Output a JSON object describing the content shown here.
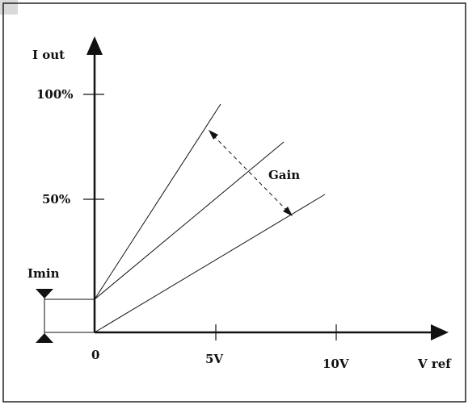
{
  "labels": {
    "y_axis": "I out",
    "x_axis": "V ref",
    "y_tick_100": "100%",
    "y_tick_50": "50%",
    "x_tick_0": "0",
    "x_tick_5": "5V",
    "x_tick_10": "10V",
    "imin": "Imin",
    "gain": "Gain"
  },
  "colors": {
    "frame": "#222222",
    "lines": "#111111",
    "corner_tab": "#d9d9d9"
  }
}
